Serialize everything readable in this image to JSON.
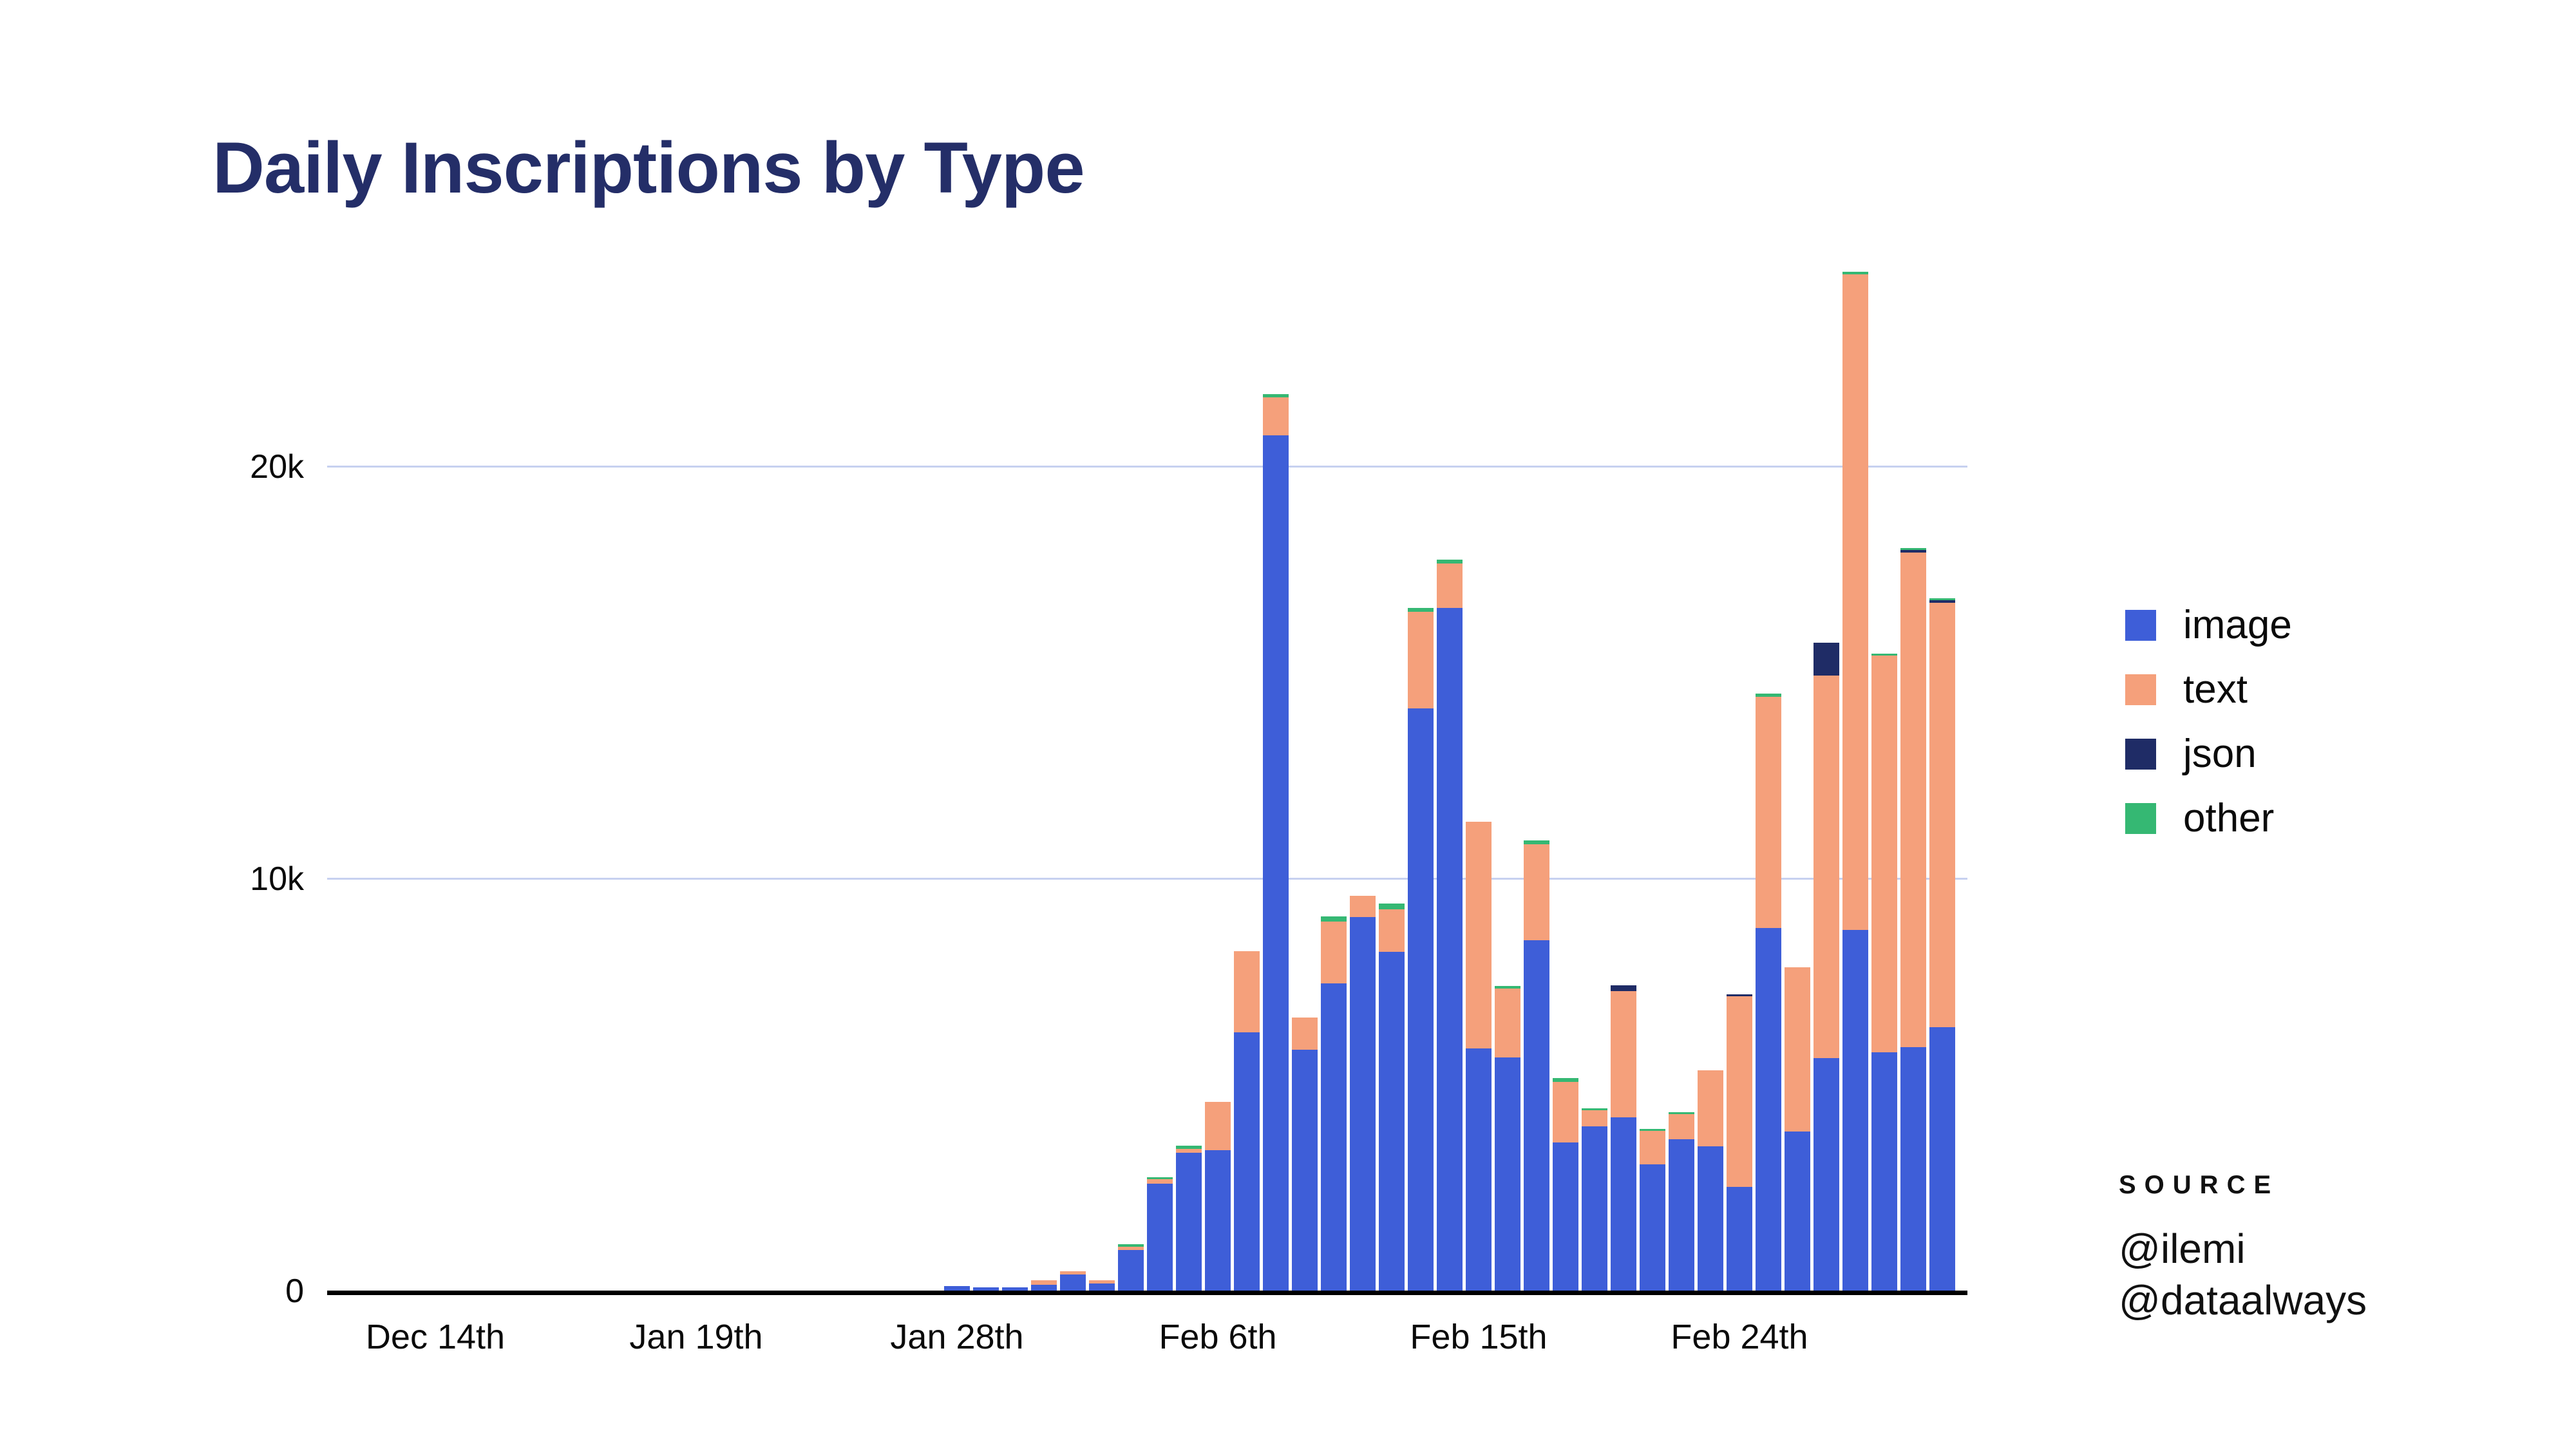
{
  "title": "Daily Inscriptions by Type",
  "legend": {
    "items": [
      {
        "key": "image",
        "label": "image",
        "color": "#3e5ed8"
      },
      {
        "key": "text",
        "label": "text",
        "color": "#f5a07b"
      },
      {
        "key": "json",
        "label": "json",
        "color": "#1f2c66"
      },
      {
        "key": "other",
        "label": "other",
        "color": "#35b873"
      }
    ]
  },
  "source": {
    "heading": "SOURCE",
    "lines": [
      "@ilemi",
      "@dataalways"
    ]
  },
  "y_axis": {
    "ticks": [
      {
        "label": "20k",
        "value": 20000
      },
      {
        "label": "10k",
        "value": 10000
      },
      {
        "label": "0",
        "value": 0
      }
    ]
  },
  "x_axis": {
    "ticks": [
      {
        "label": "Dec 14th",
        "slot": 0
      },
      {
        "label": "Jan 19th",
        "slot": 9
      },
      {
        "label": "Jan 28th",
        "slot": 18
      },
      {
        "label": "Feb 6th",
        "slot": 27
      },
      {
        "label": "Feb 15th",
        "slot": 36
      },
      {
        "label": "Feb 24th",
        "slot": 45
      }
    ]
  },
  "chart_data": {
    "type": "bar",
    "stacked": true,
    "title": "Daily Inscriptions by Type",
    "xlabel": "",
    "ylabel": "",
    "ylim": [
      0,
      25000
    ],
    "grid": "horizontal",
    "legend_position": "right",
    "stack_order": [
      "image",
      "text",
      "json",
      "other"
    ],
    "colors": {
      "image": "#3e5ed8",
      "text": "#f5a07b",
      "json": "#1f2c66",
      "other": "#35b873"
    },
    "total_slots": 53,
    "bars": [
      {
        "date": "Dec 14th",
        "image": 0,
        "text": 0,
        "json": 0,
        "other": 0
      },
      {
        "date": "",
        "image": 0,
        "text": 0,
        "json": 0,
        "other": 0
      },
      {
        "date": "",
        "image": 0,
        "text": 0,
        "json": 0,
        "other": 0
      },
      {
        "date": "",
        "image": 0,
        "text": 0,
        "json": 0,
        "other": 0
      },
      {
        "date": "",
        "image": 0,
        "text": 0,
        "json": 0,
        "other": 0
      },
      {
        "date": "",
        "image": 0,
        "text": 0,
        "json": 0,
        "other": 0
      },
      {
        "date": "",
        "image": 0,
        "text": 0,
        "json": 0,
        "other": 0
      },
      {
        "date": "",
        "image": 0,
        "text": 0,
        "json": 0,
        "other": 0
      },
      {
        "date": "",
        "image": 0,
        "text": 0,
        "json": 0,
        "other": 0
      },
      {
        "date": "Jan 19th",
        "image": 0,
        "text": 0,
        "json": 0,
        "other": 0
      },
      {
        "date": "",
        "image": 0,
        "text": 0,
        "json": 0,
        "other": 0
      },
      {
        "date": "",
        "image": 0,
        "text": 0,
        "json": 0,
        "other": 0
      },
      {
        "date": "",
        "image": 0,
        "text": 0,
        "json": 0,
        "other": 0
      },
      {
        "date": "",
        "image": 0,
        "text": 0,
        "json": 0,
        "other": 0
      },
      {
        "date": "",
        "image": 0,
        "text": 0,
        "json": 0,
        "other": 0
      },
      {
        "date": "",
        "image": 0,
        "text": 0,
        "json": 0,
        "other": 0
      },
      {
        "date": "",
        "image": 0,
        "text": 0,
        "json": 0,
        "other": 0
      },
      {
        "date": "",
        "image": 0,
        "text": 0,
        "json": 0,
        "other": 0
      },
      {
        "date": "Jan 28th",
        "image": 110,
        "text": 0,
        "json": 0,
        "other": 0
      },
      {
        "date": "Jan 29th",
        "image": 80,
        "text": 0,
        "json": 0,
        "other": 0
      },
      {
        "date": "Jan 30th",
        "image": 80,
        "text": 0,
        "json": 0,
        "other": 0
      },
      {
        "date": "Jan 31st",
        "image": 140,
        "text": 115,
        "json": 0,
        "other": 0
      },
      {
        "date": "Feb 1st",
        "image": 385,
        "text": 80,
        "json": 0,
        "other": 0
      },
      {
        "date": "Feb 2nd",
        "image": 175,
        "text": 80,
        "json": 0,
        "other": 0
      },
      {
        "date": "Feb 3rd",
        "image": 990,
        "text": 80,
        "json": 0,
        "other": 50
      },
      {
        "date": "Feb 4th",
        "image": 2590,
        "text": 110,
        "json": 0,
        "other": 50
      },
      {
        "date": "Feb 5th",
        "image": 3340,
        "text": 95,
        "json": 0,
        "other": 80
      },
      {
        "date": "Feb 6th",
        "image": 3400,
        "text": 1180,
        "json": 0,
        "other": 0
      },
      {
        "date": "Feb 7th",
        "image": 6260,
        "text": 1970,
        "json": 0,
        "other": 0
      },
      {
        "date": "Feb 8th",
        "image": 20750,
        "text": 920,
        "json": 0,
        "other": 80
      },
      {
        "date": "Feb 9th",
        "image": 5840,
        "text": 790,
        "json": 0,
        "other": 0
      },
      {
        "date": "Feb 10th",
        "image": 7450,
        "text": 1500,
        "json": 0,
        "other": 130
      },
      {
        "date": "Feb 11th",
        "image": 9060,
        "text": 520,
        "json": 0,
        "other": 0
      },
      {
        "date": "Feb 12th",
        "image": 8220,
        "text": 1030,
        "json": 0,
        "other": 140
      },
      {
        "date": "Feb 13th",
        "image": 14130,
        "text": 2340,
        "json": 0,
        "other": 95
      },
      {
        "date": "Feb 14th",
        "image": 16560,
        "text": 1080,
        "json": 0,
        "other": 90
      },
      {
        "date": "Feb 15th",
        "image": 5880,
        "text": 5490,
        "json": 0,
        "other": 0
      },
      {
        "date": "Feb 16th",
        "image": 5660,
        "text": 1670,
        "json": 0,
        "other": 60
      },
      {
        "date": "Feb 17th",
        "image": 8500,
        "text": 2330,
        "json": 0,
        "other": 85
      },
      {
        "date": "Feb 18th",
        "image": 3590,
        "text": 1480,
        "json": 0,
        "other": 80
      },
      {
        "date": "Feb 19th",
        "image": 3980,
        "text": 400,
        "json": 0,
        "other": 50
      },
      {
        "date": "Feb 20th",
        "image": 4210,
        "text": 3050,
        "json": 140,
        "other": 0
      },
      {
        "date": "Feb 21st",
        "image": 3070,
        "text": 800,
        "json": 0,
        "other": 50
      },
      {
        "date": "Feb 22nd",
        "image": 3665,
        "text": 620,
        "json": 0,
        "other": 45
      },
      {
        "date": "Feb 23rd",
        "image": 3505,
        "text": 1845,
        "json": 0,
        "other": 0
      },
      {
        "date": "Feb 24th",
        "image": 2510,
        "text": 4630,
        "json": 50,
        "other": 0
      },
      {
        "date": "Feb 25th",
        "image": 8800,
        "text": 5610,
        "json": 0,
        "other": 70
      },
      {
        "date": "Feb 26th",
        "image": 3860,
        "text": 3990,
        "json": 0,
        "other": 0
      },
      {
        "date": "Feb 27th",
        "image": 5640,
        "text": 9280,
        "json": 800,
        "other": 0
      },
      {
        "date": "Feb 28th",
        "image": 8750,
        "text": 15900,
        "json": 0,
        "other": 70
      },
      {
        "date": "Mar 1st",
        "image": 5780,
        "text": 9630,
        "json": 0,
        "other": 40
      },
      {
        "date": "Mar 2nd",
        "image": 5910,
        "text": 12000,
        "json": 60,
        "other": 50
      },
      {
        "date": "Mar 3rd",
        "image": 6390,
        "text": 10300,
        "json": 60,
        "other": 50
      }
    ]
  }
}
